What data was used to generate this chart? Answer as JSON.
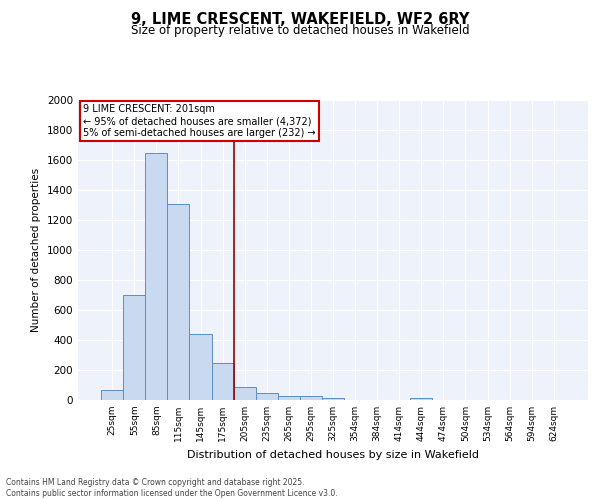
{
  "title_line1": "9, LIME CRESCENT, WAKEFIELD, WF2 6RY",
  "title_line2": "Size of property relative to detached houses in Wakefield",
  "xlabel": "Distribution of detached houses by size in Wakefield",
  "ylabel": "Number of detached properties",
  "categories": [
    "25sqm",
    "55sqm",
    "85sqm",
    "115sqm",
    "145sqm",
    "175sqm",
    "205sqm",
    "235sqm",
    "265sqm",
    "295sqm",
    "325sqm",
    "354sqm",
    "384sqm",
    "414sqm",
    "444sqm",
    "474sqm",
    "504sqm",
    "534sqm",
    "564sqm",
    "594sqm",
    "624sqm"
  ],
  "values": [
    65,
    700,
    1650,
    1310,
    440,
    250,
    90,
    50,
    30,
    25,
    15,
    0,
    0,
    0,
    15,
    0,
    0,
    0,
    0,
    0,
    0
  ],
  "bar_color": "#c9d9f0",
  "bar_edge_color": "#5b8ec4",
  "ylim": [
    0,
    2000
  ],
  "yticks": [
    0,
    200,
    400,
    600,
    800,
    1000,
    1200,
    1400,
    1600,
    1800,
    2000
  ],
  "annotation_box_text": [
    "9 LIME CRESCENT: 201sqm",
    "← 95% of detached houses are smaller (4,372)",
    "5% of semi-detached houses are larger (232) →"
  ],
  "annotation_box_edge_color": "#cc0000",
  "vline_color": "#990000",
  "vline_x": 6.5,
  "background_color": "#eef2fa",
  "footer_line1": "Contains HM Land Registry data © Crown copyright and database right 2025.",
  "footer_line2": "Contains public sector information licensed under the Open Government Licence v3.0."
}
